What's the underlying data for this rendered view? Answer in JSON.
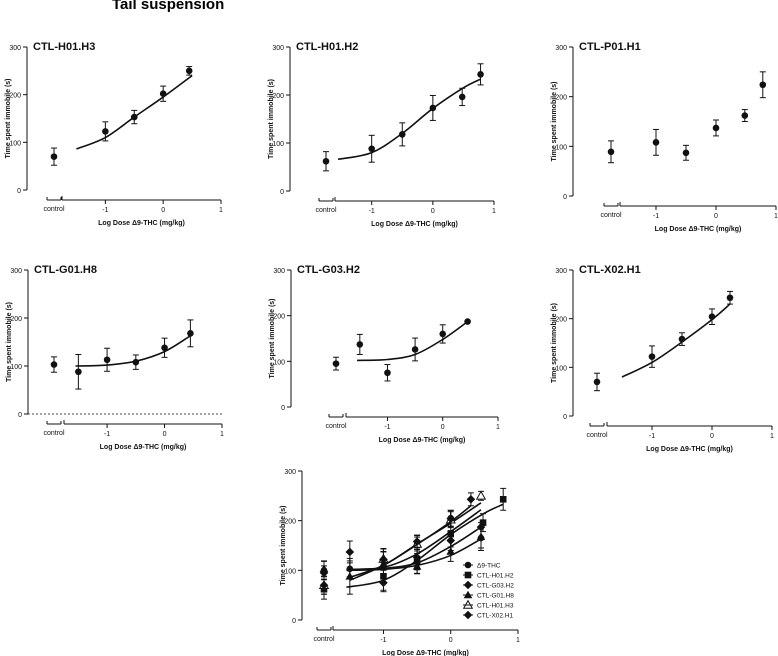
{
  "figure_title": "Tail suspension",
  "chart_data": [
    {
      "type": "scatter",
      "title": "CTL-H01.H3",
      "xlabel": "Log Dose Δ9-THC (mg/kg)",
      "ylabel": "Time spent immobile (s)",
      "control_label": "control",
      "xlim": [
        -1.75,
        1
      ],
      "ylim": [
        0,
        300
      ],
      "xticks": [
        -1,
        0,
        1
      ],
      "yticks": [
        0,
        100,
        200,
        300
      ],
      "control": {
        "y": 70,
        "err": 18
      },
      "points": [
        {
          "x": -1,
          "y": 123,
          "err": 20
        },
        {
          "x": -0.5,
          "y": 153,
          "err": 14
        },
        {
          "x": 0,
          "y": 202,
          "err": 16
        },
        {
          "x": 0.45,
          "y": 250,
          "err": 9
        }
      ],
      "curve": [
        [
          -1.5,
          86
        ],
        [
          -1,
          110
        ],
        [
          -0.5,
          153
        ],
        [
          0,
          195
        ],
        [
          0.5,
          240
        ]
      ],
      "baseline_dashed": false
    },
    {
      "type": "scatter",
      "title": "CTL-H01.H2",
      "xlabel": "Log Dose Δ9-THC (mg/kg)",
      "ylabel": "Time spent immobile (s)",
      "control_label": "control",
      "xlim": [
        -1.6,
        1
      ],
      "ylim": [
        0,
        300
      ],
      "xticks": [
        -1,
        0,
        1
      ],
      "yticks": [
        0,
        100,
        200,
        300
      ],
      "control": {
        "y": 62,
        "err": 20
      },
      "points": [
        {
          "x": -1,
          "y": 88,
          "err": 28
        },
        {
          "x": -0.5,
          "y": 118,
          "err": 24
        },
        {
          "x": 0,
          "y": 173,
          "err": 26
        },
        {
          "x": 0.48,
          "y": 196,
          "err": 18
        },
        {
          "x": 0.78,
          "y": 243,
          "err": 22
        }
      ],
      "curve": [
        [
          -1.55,
          66
        ],
        [
          -1,
          80
        ],
        [
          -0.5,
          120
        ],
        [
          0,
          172
        ],
        [
          0.5,
          215
        ],
        [
          0.78,
          233
        ]
      ],
      "baseline_dashed": false
    },
    {
      "type": "scatter",
      "title": "CTL-P01.H1",
      "xlabel": "Log Dose Δ9-THC (mg/kg)",
      "ylabel": "Time spent immobile (s)",
      "control_label": "control",
      "xlim": [
        -1.6,
        1
      ],
      "ylim": [
        0,
        300
      ],
      "xticks": [
        -1,
        0,
        1
      ],
      "yticks": [
        0,
        100,
        200,
        300
      ],
      "control": {
        "y": 89,
        "err": 22
      },
      "points": [
        {
          "x": -1,
          "y": 108,
          "err": 26
        },
        {
          "x": -0.5,
          "y": 87,
          "err": 15
        },
        {
          "x": 0,
          "y": 137,
          "err": 16
        },
        {
          "x": 0.48,
          "y": 162,
          "err": 12
        },
        {
          "x": 0.78,
          "y": 224,
          "err": 26
        }
      ],
      "curve": [],
      "baseline_dashed": false
    },
    {
      "type": "scatter",
      "title": "CTL-G01.H8",
      "xlabel": "Log Dose Δ9-THC (mg/kg)",
      "ylabel": "Time spent immobile (s)",
      "control_label": "control",
      "xlim": [
        -1.75,
        1
      ],
      "ylim": [
        0,
        300
      ],
      "xticks": [
        -1,
        0,
        1
      ],
      "yticks": [
        0,
        100,
        200,
        300
      ],
      "control": {
        "y": 103,
        "err": 16
      },
      "points": [
        {
          "x": -1.5,
          "y": 88,
          "err": 36
        },
        {
          "x": -1,
          "y": 113,
          "err": 24
        },
        {
          "x": -0.5,
          "y": 108,
          "err": 15
        },
        {
          "x": 0,
          "y": 138,
          "err": 20
        },
        {
          "x": 0.45,
          "y": 168,
          "err": 28
        }
      ],
      "curve": [
        [
          -1.55,
          100
        ],
        [
          -1,
          102
        ],
        [
          -0.5,
          110
        ],
        [
          0,
          130
        ],
        [
          0.45,
          163
        ]
      ],
      "baseline_dashed": true
    },
    {
      "type": "scatter",
      "title": "CTL-G03.H2",
      "xlabel": "Log Dose Δ9-THC (mg/kg)",
      "ylabel": "Time spent immobile (s)",
      "control_label": "control",
      "xlim": [
        -1.75,
        1
      ],
      "ylim": [
        0,
        300
      ],
      "xticks": [
        -1,
        0,
        1
      ],
      "yticks": [
        0,
        100,
        200,
        300
      ],
      "control": {
        "y": 95,
        "err": 14
      },
      "points": [
        {
          "x": -1.5,
          "y": 137,
          "err": 22
        },
        {
          "x": -1,
          "y": 75,
          "err": 18
        },
        {
          "x": -0.5,
          "y": 126,
          "err": 25
        },
        {
          "x": 0,
          "y": 160,
          "err": 20
        },
        {
          "x": 0.45,
          "y": 187,
          "err": 0
        }
      ],
      "curve": [
        [
          -1.55,
          102
        ],
        [
          -1,
          104
        ],
        [
          -0.5,
          115
        ],
        [
          0,
          148
        ],
        [
          0.45,
          187
        ]
      ],
      "baseline_dashed": false
    },
    {
      "type": "scatter",
      "title": "CTL-X02.H1",
      "xlabel": "Log Dose Δ9-THC (mg/kg)",
      "ylabel": "Time spent immobile (s)",
      "control_label": "control",
      "xlim": [
        -1.75,
        1
      ],
      "ylim": [
        0,
        300
      ],
      "xticks": [
        -1,
        0,
        1
      ],
      "yticks": [
        0,
        100,
        200,
        300
      ],
      "control": {
        "y": 70,
        "err": 18
      },
      "points": [
        {
          "x": -1,
          "y": 122,
          "err": 22
        },
        {
          "x": -0.5,
          "y": 158,
          "err": 13
        },
        {
          "x": 0,
          "y": 204,
          "err": 16
        },
        {
          "x": 0.3,
          "y": 243,
          "err": 13
        }
      ],
      "curve": [
        [
          -1.5,
          80
        ],
        [
          -1,
          110
        ],
        [
          -0.5,
          152
        ],
        [
          0,
          198
        ],
        [
          0.3,
          230
        ]
      ],
      "baseline_dashed": false
    },
    {
      "type": "scatter",
      "title": "",
      "xlabel": "Log Dose Δ9-THC (mg/kg)",
      "ylabel": "Time spent immobile (s)",
      "control_label": "control",
      "xlim": [
        -1.75,
        1
      ],
      "ylim": [
        0,
        300
      ],
      "xticks": [
        -1,
        0,
        1
      ],
      "yticks": [
        0,
        100,
        200,
        300
      ],
      "legend_position": "right",
      "series": [
        {
          "name": "Δ9-THC",
          "marker": "circle",
          "control": {
            "y": 100,
            "err": 18
          },
          "points": [
            {
              "x": -1.5,
              "y": 103,
              "err": 16
            },
            {
              "x": -1,
              "y": 120,
              "err": 18
            },
            {
              "x": -0.5,
              "y": 152,
              "err": 18
            },
            {
              "x": 0,
              "y": 205,
              "err": 16
            },
            {
              "x": 0.45,
              "y": 165,
              "err": 20
            }
          ],
          "curve": [
            [
              -1.55,
              102
            ],
            [
              -1,
              106
            ],
            [
              -0.5,
              133
            ],
            [
              0,
              178
            ],
            [
              0.45,
              222
            ]
          ]
        },
        {
          "name": "CTL-H01.H2",
          "marker": "square",
          "control": {
            "y": 62,
            "err": 20
          },
          "points": [
            {
              "x": -1,
              "y": 88,
              "err": 28
            },
            {
              "x": -0.5,
              "y": 118,
              "err": 24
            },
            {
              "x": 0,
              "y": 173,
              "err": 26
            },
            {
              "x": 0.48,
              "y": 196,
              "err": 18
            },
            {
              "x": 0.78,
              "y": 243,
              "err": 22
            }
          ],
          "curve": [
            [
              -1.55,
              66
            ],
            [
              -1,
              80
            ],
            [
              -0.5,
              120
            ],
            [
              0,
              172
            ],
            [
              0.5,
              215
            ],
            [
              0.78,
              233
            ]
          ]
        },
        {
          "name": "CTL-G03.H2",
          "marker": "diamond",
          "control": {
            "y": 95,
            "err": 14
          },
          "points": [
            {
              "x": -1.5,
              "y": 137,
              "err": 22
            },
            {
              "x": -1,
              "y": 75,
              "err": 18
            },
            {
              "x": -0.5,
              "y": 126,
              "err": 25
            },
            {
              "x": 0,
              "y": 160,
              "err": 20
            },
            {
              "x": 0.45,
              "y": 187,
              "err": 0
            }
          ],
          "curve": [
            [
              -1.55,
              102
            ],
            [
              -1,
              104
            ],
            [
              -0.5,
              115
            ],
            [
              0,
              148
            ],
            [
              0.45,
              187
            ]
          ]
        },
        {
          "name": "CTL-G01.H8",
          "marker": "triangle",
          "control": {
            "y": 103,
            "err": 16
          },
          "points": [
            {
              "x": -1.5,
              "y": 88,
              "err": 36
            },
            {
              "x": -1,
              "y": 113,
              "err": 24
            },
            {
              "x": -0.5,
              "y": 108,
              "err": 15
            },
            {
              "x": 0,
              "y": 138,
              "err": 20
            },
            {
              "x": 0.45,
              "y": 168,
              "err": 28
            }
          ],
          "curve": [
            [
              -1.55,
              100
            ],
            [
              -1,
              102
            ],
            [
              -0.5,
              110
            ],
            [
              0,
              130
            ],
            [
              0.45,
              163
            ]
          ]
        },
        {
          "name": "CTL-H01.H3",
          "marker": "triangle-open",
          "control": {
            "y": 70,
            "err": 18
          },
          "points": [
            {
              "x": -1,
              "y": 123,
              "err": 20
            },
            {
              "x": -0.5,
              "y": 153,
              "err": 14
            },
            {
              "x": 0,
              "y": 202,
              "err": 16
            },
            {
              "x": 0.45,
              "y": 250,
              "err": 9
            }
          ],
          "curve": [
            [
              -1.5,
              86
            ],
            [
              -1,
              110
            ],
            [
              -0.5,
              153
            ],
            [
              0,
              195
            ],
            [
              0.45,
              236
            ]
          ]
        },
        {
          "name": "CTL-X02.H1",
          "marker": "diamond",
          "control": {
            "y": 70,
            "err": 18
          },
          "points": [
            {
              "x": -1,
              "y": 122,
              "err": 22
            },
            {
              "x": -0.5,
              "y": 158,
              "err": 13
            },
            {
              "x": 0,
              "y": 204,
              "err": 16
            },
            {
              "x": 0.3,
              "y": 243,
              "err": 13
            }
          ],
          "curve": [
            [
              -1.5,
              80
            ],
            [
              -1,
              110
            ],
            [
              -0.5,
              152
            ],
            [
              0,
              198
            ],
            [
              0.3,
              230
            ]
          ]
        }
      ]
    }
  ]
}
